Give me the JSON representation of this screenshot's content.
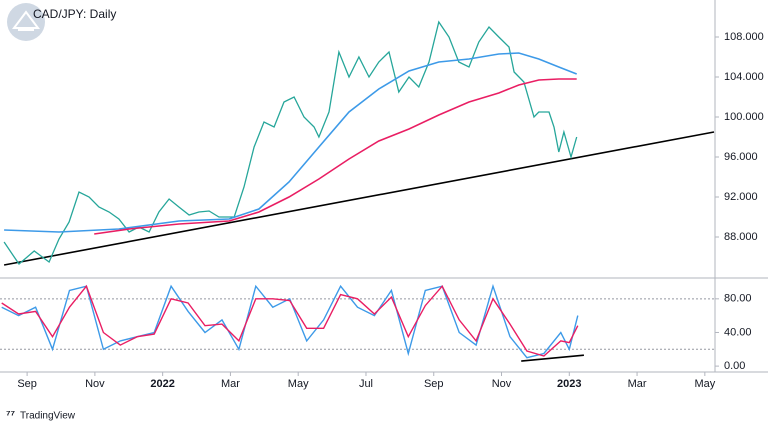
{
  "chart_data": [
    {
      "type": "line",
      "title": "CAD/JPY: Daily",
      "xlim": [
        -0.8,
        20.3
      ],
      "ylim": [
        84.2,
        111.7
      ],
      "xticks": [
        {
          "value": 0,
          "label": "Sep"
        },
        {
          "value": 2,
          "label": "Nov"
        },
        {
          "value": 4,
          "label": "2022"
        },
        {
          "value": 6,
          "label": "Mar"
        },
        {
          "value": 8,
          "label": "May"
        },
        {
          "value": 10,
          "label": "Jul"
        },
        {
          "value": 12,
          "label": "Sep"
        },
        {
          "value": 14,
          "label": "Nov"
        },
        {
          "value": 16,
          "label": "2023"
        },
        {
          "value": 18,
          "label": "Mar"
        },
        {
          "value": 20,
          "label": "May"
        }
      ],
      "yticks": [
        {
          "value": 88,
          "label": "88.000"
        },
        {
          "value": 92,
          "label": "92.000"
        },
        {
          "value": 96,
          "label": "96.000"
        },
        {
          "value": 100,
          "label": "100.000"
        },
        {
          "value": 104,
          "label": "104.000"
        },
        {
          "value": 108,
          "label": "108.000"
        }
      ],
      "series": [
        {
          "color": "#26a69a",
          "width": 1.3,
          "x": [
            -0.68,
            -0.38,
            -0.24,
            0.21,
            0.65,
            0.94,
            1.24,
            1.53,
            1.83,
            2.12,
            2.42,
            2.71,
            3.01,
            3.3,
            3.6,
            3.89,
            4.19,
            4.48,
            4.78,
            5.07,
            5.37,
            5.66,
            6.11,
            6.4,
            6.7,
            6.99,
            7.29,
            7.58,
            7.88,
            8.17,
            8.47,
            8.61,
            8.91,
            9.2,
            9.5,
            9.79,
            10.09,
            10.38,
            10.68,
            10.97,
            11.27,
            11.56,
            11.86,
            12.15,
            12.45,
            12.74,
            13.04,
            13.33,
            13.63,
            13.92,
            14.22,
            14.37,
            14.66,
            14.96,
            15.1,
            15.4,
            15.55,
            15.69,
            15.84,
            16.05,
            16.22
          ],
          "values": [
            87.5,
            86.0,
            85.3,
            86.6,
            85.5,
            87.8,
            89.5,
            92.5,
            92.0,
            91.0,
            90.5,
            89.8,
            88.5,
            89.0,
            88.5,
            90.5,
            91.8,
            91.0,
            90.2,
            90.5,
            90.6,
            90.0,
            90.0,
            93.0,
            97.0,
            99.5,
            99.0,
            101.5,
            102.0,
            100.0,
            99.0,
            98.0,
            100.5,
            106.5,
            104.0,
            106.0,
            104.0,
            105.5,
            106.5,
            102.5,
            104.0,
            103.0,
            105.5,
            109.5,
            108.0,
            105.5,
            105.0,
            107.5,
            109.0,
            108.0,
            107.0,
            104.5,
            103.5,
            100.0,
            100.5,
            100.5,
            99.0,
            96.5,
            98.5,
            96.0,
            98.0
          ]
        },
        {
          "color": "#3d9ae8",
          "width": 1.6,
          "x": [
            -0.68,
            0.94,
            2.71,
            4.48,
            5.96,
            6.84,
            7.73,
            8.61,
            9.5,
            10.38,
            11.27,
            12.15,
            13.04,
            13.92,
            14.51,
            15.1,
            15.69,
            16.22
          ],
          "values": [
            88.7,
            88.5,
            88.8,
            89.6,
            89.8,
            90.8,
            93.5,
            97.0,
            100.5,
            102.8,
            104.6,
            105.5,
            105.8,
            106.3,
            106.4,
            105.8,
            105.0,
            104.3
          ]
        },
        {
          "color": "#e91e63",
          "width": 1.6,
          "x": [
            1.98,
            3.01,
            4.48,
            5.96,
            6.84,
            7.73,
            8.61,
            9.5,
            10.38,
            11.27,
            12.15,
            13.04,
            13.92,
            14.51,
            15.1,
            15.69,
            16.22
          ],
          "values": [
            88.3,
            88.8,
            89.3,
            89.6,
            90.5,
            92.0,
            93.8,
            95.8,
            97.6,
            98.8,
            100.2,
            101.5,
            102.4,
            103.2,
            103.7,
            103.8,
            103.8
          ]
        }
      ],
      "trendlines": [
        {
          "color": "#000000",
          "x": [
            -0.68,
            20.27
          ],
          "values": [
            85.2,
            98.5
          ]
        }
      ]
    },
    {
      "type": "line",
      "xlim": [
        -0.8,
        20.3
      ],
      "ylim": [
        -7,
        100
      ],
      "yticks": [
        {
          "value": 0,
          "label": "0.00"
        },
        {
          "value": 40,
          "label": "40.00"
        },
        {
          "value": 80,
          "label": "80.00"
        }
      ],
      "bands": [
        20,
        80
      ],
      "series": [
        {
          "color": "#3d9ae8",
          "width": 1.4,
          "x": [
            -0.75,
            -0.25,
            0.25,
            0.75,
            1.25,
            1.75,
            2.25,
            2.75,
            3.25,
            3.75,
            4.25,
            4.75,
            5.25,
            5.75,
            6.25,
            6.75,
            7.25,
            7.75,
            8.25,
            8.75,
            9.25,
            9.75,
            10.25,
            10.75,
            11.25,
            11.75,
            12.25,
            12.75,
            13.25,
            13.75,
            14.25,
            14.75,
            15.25,
            15.75,
            16.0,
            16.25
          ],
          "values": [
            70,
            60,
            70,
            20,
            90,
            95,
            20,
            30,
            35,
            40,
            95,
            65,
            40,
            55,
            20,
            95,
            70,
            80,
            30,
            55,
            95,
            70,
            60,
            90,
            15,
            90,
            95,
            40,
            25,
            95,
            35,
            10,
            15,
            40,
            20,
            60
          ]
        },
        {
          "color": "#e91e63",
          "width": 1.4,
          "x": [
            -0.75,
            -0.25,
            0.25,
            0.75,
            1.25,
            1.75,
            2.25,
            2.75,
            3.25,
            3.75,
            4.25,
            4.75,
            5.25,
            5.75,
            6.25,
            6.75,
            7.25,
            7.75,
            8.25,
            8.75,
            9.25,
            9.75,
            10.25,
            10.75,
            11.25,
            11.75,
            12.25,
            12.75,
            13.25,
            13.75,
            14.25,
            14.75,
            15.25,
            15.75,
            16.0,
            16.25
          ],
          "values": [
            75,
            62,
            65,
            35,
            70,
            95,
            40,
            25,
            35,
            38,
            80,
            75,
            48,
            50,
            30,
            80,
            80,
            78,
            45,
            45,
            85,
            80,
            62,
            82,
            35,
            72,
            95,
            55,
            30,
            80,
            50,
            18,
            12,
            30,
            28,
            48
          ]
        }
      ],
      "trendlines": [
        {
          "color": "#000000",
          "x": [
            14.58,
            16.43
          ],
          "values": [
            5.9,
            13
          ]
        }
      ]
    }
  ],
  "footer": "TradingView"
}
